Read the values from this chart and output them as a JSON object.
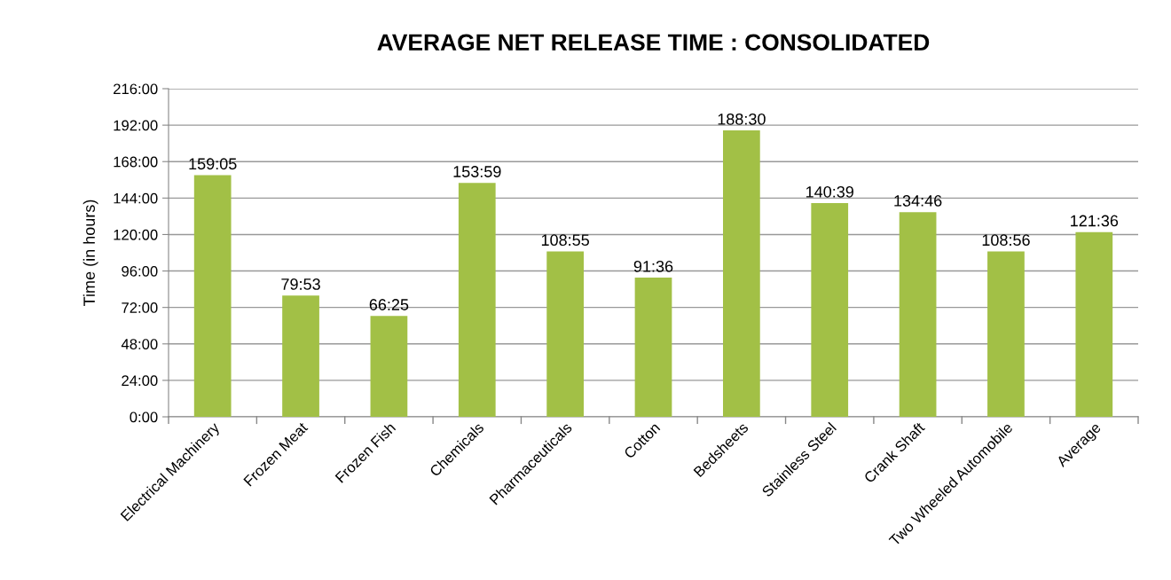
{
  "chart_data": {
    "type": "bar",
    "title": "AVERAGE NET RELEASE TIME : CONSOLIDATED",
    "ylabel": "Time (in hours)",
    "categories": [
      "Electrical Machinery",
      "Frozen Meat",
      "Frozen Fish",
      "Chemicals",
      "Pharmaceuticals",
      "Cotton",
      "Bedsheets",
      "Stainless Steel",
      "Crank Shaft",
      "Two Wheeled Automobile",
      "Average"
    ],
    "values": [
      159.08,
      79.88,
      66.42,
      153.98,
      108.92,
      91.6,
      188.5,
      140.65,
      134.77,
      108.93,
      121.6
    ],
    "value_labels": [
      "159:05",
      "79:53",
      "66:25",
      "153:59",
      "108:55",
      "91:36",
      "188:30",
      "140:39",
      "134:46",
      "108:56",
      "121:36"
    ],
    "color": "#a2c046",
    "ylim": [
      0,
      216
    ],
    "yticks": [
      {
        "value": 0,
        "label": "0:00"
      },
      {
        "value": 24,
        "label": "24:00"
      },
      {
        "value": 48,
        "label": "48:00"
      },
      {
        "value": 72,
        "label": "72:00"
      },
      {
        "value": 96,
        "label": "96:00"
      },
      {
        "value": 120,
        "label": "120:00"
      },
      {
        "value": 144,
        "label": "144:00"
      },
      {
        "value": 168,
        "label": "168:00"
      },
      {
        "value": 192,
        "label": "192:00"
      },
      {
        "value": 216,
        "label": "216:00"
      }
    ],
    "grid": "y",
    "legend": false
  }
}
